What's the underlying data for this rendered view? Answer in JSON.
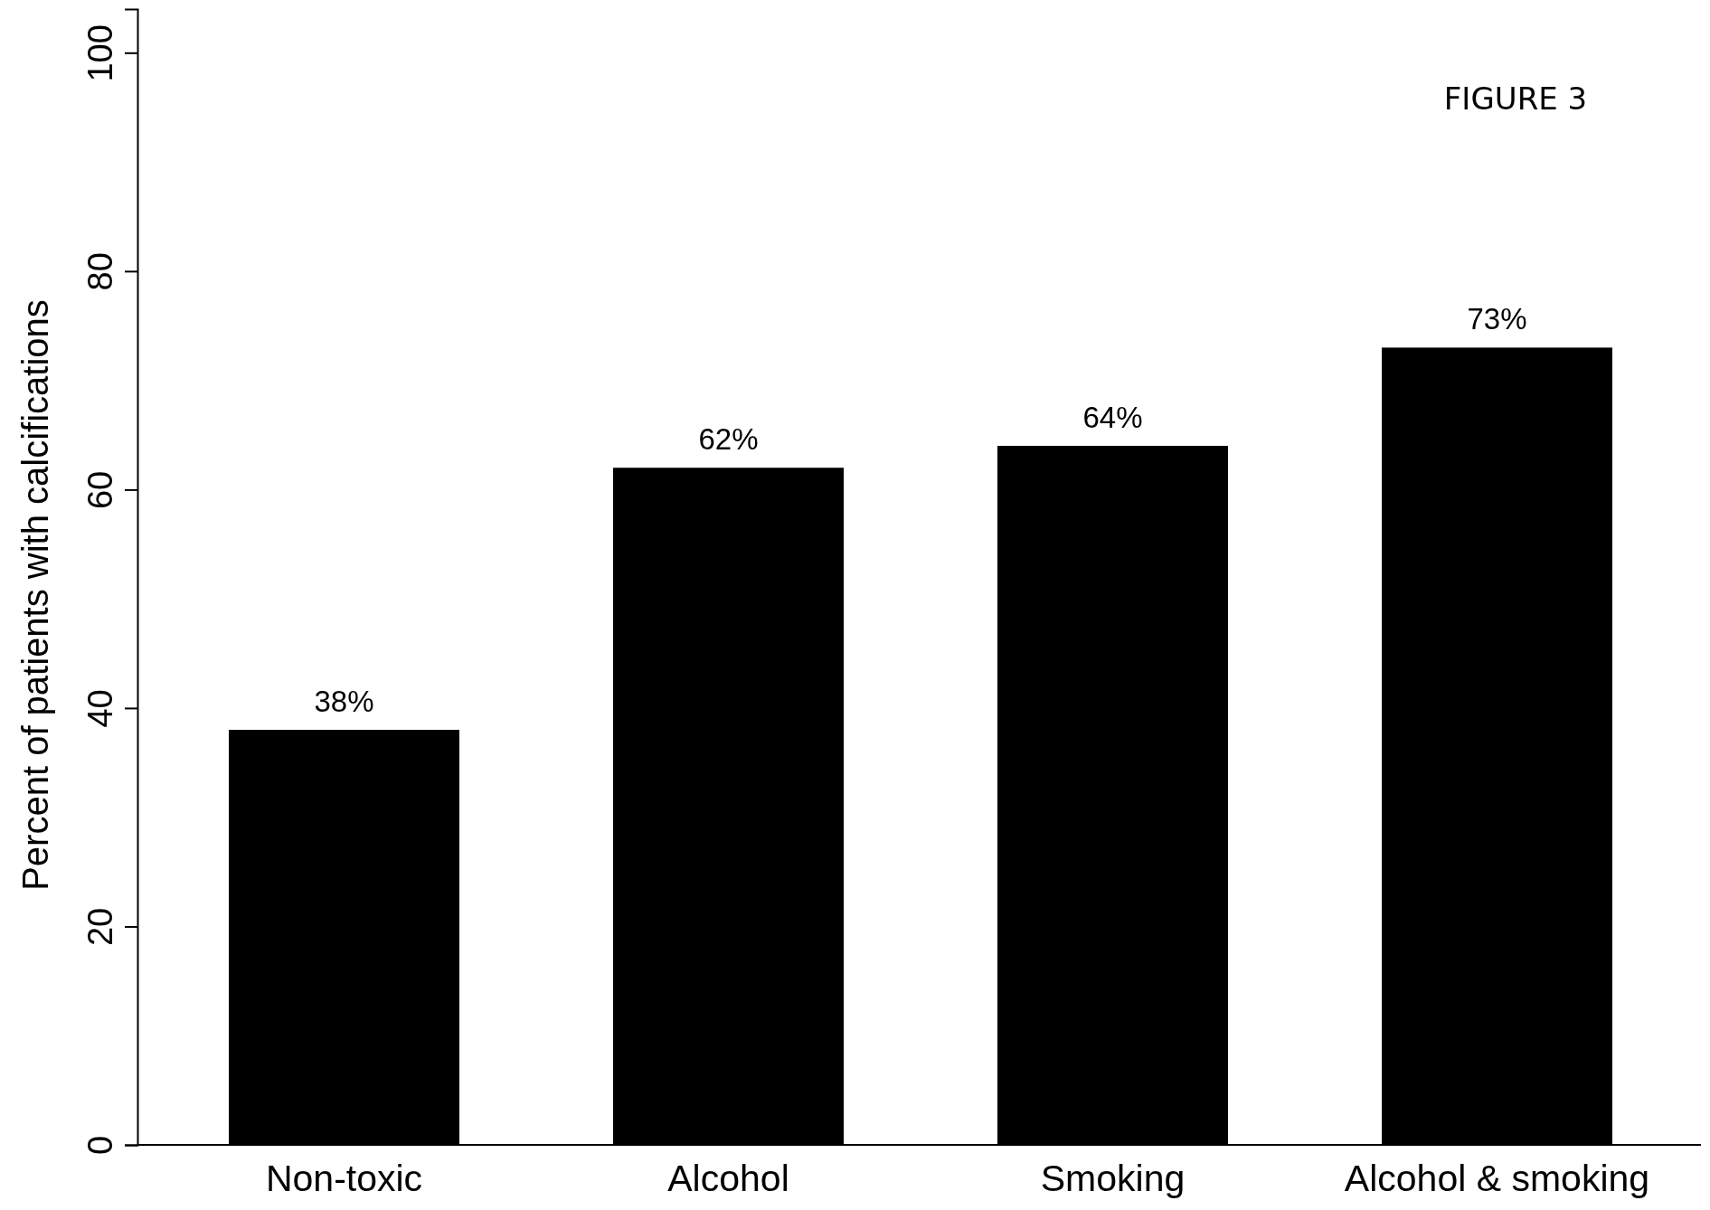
{
  "chart_data": {
    "type": "bar",
    "ylabel": "Percent of patients with calcifications",
    "categories": [
      "Non-toxic",
      "Alcohol",
      "Smoking",
      "Alcohol & smoking"
    ],
    "values": [
      38,
      62,
      64,
      73
    ],
    "value_labels": [
      "38%",
      "62%",
      "64%",
      "73%"
    ],
    "color": "#000000",
    "ylim": [
      0,
      104
    ],
    "yticks": [
      0,
      20,
      40,
      60,
      80,
      100
    ],
    "grid": false,
    "annotations": [
      "FIGURE 3"
    ]
  }
}
